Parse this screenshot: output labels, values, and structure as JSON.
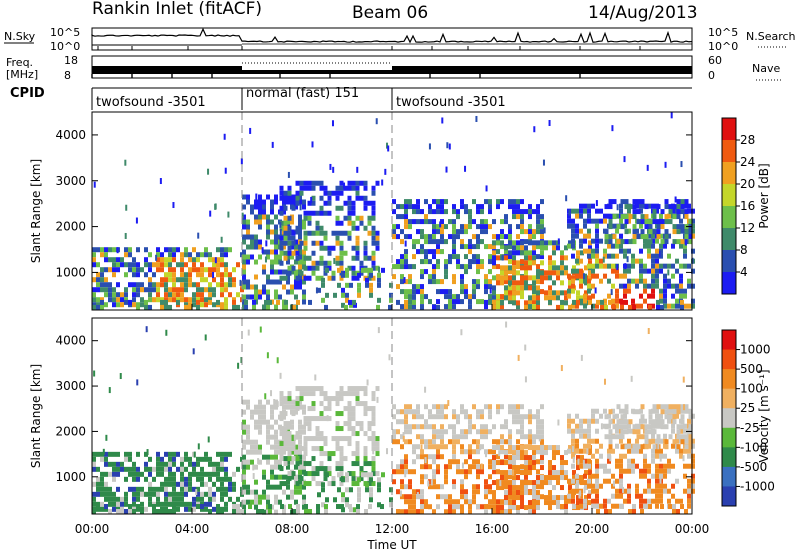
{
  "header": {
    "station": "Rankin Inlet (fitACF)",
    "beam": "Beam 06",
    "date": "14/Aug/2013"
  },
  "noise_panel": {
    "left_label": "N.Sky",
    "left_ticks": [
      "10^5",
      "10^0"
    ],
    "right_label": "N.Search",
    "right_ticks": [
      "10^5",
      "10^0"
    ]
  },
  "freq_panel": {
    "left_label_1": "Freq.",
    "left_label_2": "[MHz]",
    "left_ticks": [
      "18",
      "8"
    ],
    "right_label": "Nave",
    "right_ticks": [
      "60",
      "0"
    ]
  },
  "cpid": {
    "label": "CPID",
    "segments": [
      {
        "name": "twofsound -3501",
        "start_hour": 0,
        "end_hour": 6
      },
      {
        "name": "normal (fast) 151",
        "start_hour": 6,
        "end_hour": 12
      },
      {
        "name": "twofsound -3501",
        "start_hour": 12,
        "end_hour": 24
      }
    ]
  },
  "time_axis": {
    "label": "Time UT",
    "ticks": [
      "00:00",
      "04:00",
      "08:00",
      "12:00",
      "16:00",
      "20:00",
      "00:00"
    ]
  },
  "chart_data": [
    {
      "type": "heatmap",
      "name": "power",
      "ylabel": "Slant Range [km]",
      "yticks": [
        "1000",
        "2000",
        "3000",
        "4000"
      ],
      "ylim": [
        180,
        4500
      ],
      "xlim_hours": [
        0,
        24
      ],
      "colorbar_label": "Power [dB]",
      "colorbar_ticks": [
        "28",
        "24",
        "20",
        "16",
        "12",
        "8",
        "4"
      ],
      "colorbar_colors": [
        "#1c1cf2",
        "#2a4fb0",
        "#3f8a6a",
        "#6dbf4a",
        "#c4d62a",
        "#f0a020",
        "#f05a10",
        "#e01010"
      ]
    },
    {
      "type": "heatmap",
      "name": "velocity",
      "ylabel": "Slant Range [km]",
      "yticks": [
        "1000",
        "2000",
        "3000",
        "4000"
      ],
      "ylim": [
        180,
        4500
      ],
      "xlim_hours": [
        0,
        24
      ],
      "colorbar_label": "Velocity [m s⁻¹]",
      "colorbar_ticks": [
        "1000",
        "500",
        "100",
        "25",
        "-25",
        "-100",
        "-500",
        "-1000"
      ],
      "colorbar_colors": [
        "#2a40b0",
        "#3a70c0",
        "#2f8a4a",
        "#5ab83a",
        "#c8c8c4",
        "#f0b060",
        "#f08a20",
        "#f05010",
        "#e01010"
      ]
    }
  ],
  "colors": {
    "accent_lines": "#888888"
  }
}
